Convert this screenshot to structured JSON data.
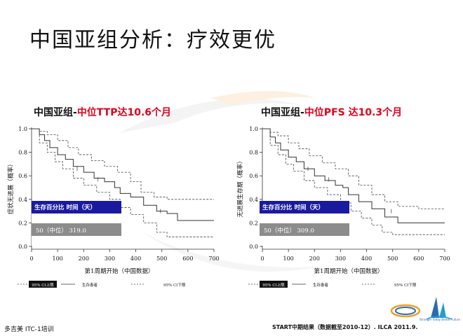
{
  "slide": {
    "title": "中国亚组分析：疗效更优",
    "footer_left": "多吉美 ITC-1培训",
    "footer_right": "START中期结果（数据截至2010-12）. ILCA 2011.9.",
    "logo_text": "Stronger Today Better Future"
  },
  "panels": [
    {
      "title_prefix": "中国亚组-",
      "title_highlight": "中位TTP达10.6个月"
    },
    {
      "title_prefix": "中国亚组-",
      "title_highlight": "中位PFS 达10.3个月"
    }
  ],
  "chart_data": [
    {
      "type": "line",
      "subtype": "kaplan-meier",
      "ylabel": "症状无进展（概率）",
      "xlabel": "第1周期开始（中国数据）",
      "xlim": [
        0,
        700
      ],
      "ylim": [
        0,
        1.0
      ],
      "xticks": [
        0,
        100,
        200,
        300,
        400,
        500,
        600,
        700
      ],
      "yticks": [
        "0.0",
        "0.2",
        "0.4",
        "0.6",
        "0.8",
        "1.0"
      ],
      "table": {
        "header": "生存百分比  时间（天）",
        "row": "50（中位）   319.0"
      },
      "legend": [
        "95% CI上限",
        "生存患者",
        "95% CI下限"
      ],
      "series": [
        {
          "name": "生存患者",
          "style": "solid",
          "x": [
            0,
            30,
            50,
            70,
            100,
            130,
            160,
            200,
            240,
            280,
            319,
            340,
            380,
            430,
            480,
            520,
            560,
            600,
            700
          ],
          "y": [
            1.0,
            0.95,
            0.9,
            0.84,
            0.78,
            0.74,
            0.68,
            0.63,
            0.58,
            0.55,
            0.5,
            0.45,
            0.42,
            0.35,
            0.3,
            0.28,
            0.22,
            0.22,
            0.22
          ]
        },
        {
          "name": "95% CI上限",
          "style": "dashed",
          "x": [
            0,
            30,
            60,
            100,
            140,
            180,
            230,
            280,
            330,
            380,
            420,
            470,
            520,
            600,
            700
          ],
          "y": [
            1.0,
            0.98,
            0.95,
            0.9,
            0.84,
            0.78,
            0.73,
            0.68,
            0.63,
            0.55,
            0.46,
            0.42,
            0.4,
            0.4,
            0.4
          ]
        },
        {
          "name": "95% CI下限",
          "style": "dashed",
          "x": [
            0,
            30,
            60,
            90,
            120,
            160,
            200,
            250,
            300,
            340,
            380,
            430,
            480,
            520,
            700
          ],
          "y": [
            1.0,
            0.88,
            0.8,
            0.72,
            0.66,
            0.58,
            0.52,
            0.46,
            0.4,
            0.33,
            0.27,
            0.2,
            0.12,
            0.08,
            0.08
          ]
        }
      ]
    },
    {
      "type": "line",
      "subtype": "kaplan-meier",
      "ylabel": "无进展生存期（概率）",
      "xlabel": "第1周期开始（中国数据）",
      "xlim": [
        0,
        700
      ],
      "ylim": [
        0,
        1.0
      ],
      "xticks": [
        0,
        100,
        200,
        300,
        400,
        500,
        600,
        700
      ],
      "yticks": [
        "0.0",
        "0.2",
        "0.4",
        "0.6",
        "0.8",
        "1.0"
      ],
      "table": {
        "header": "生存百分比  时间（天）",
        "row": "50（中位）   309.0"
      },
      "legend": [
        "95% CI上限",
        "生存患者",
        "95% CI下限"
      ],
      "series": [
        {
          "name": "生存患者",
          "style": "solid",
          "x": [
            0,
            30,
            50,
            70,
            100,
            130,
            160,
            200,
            240,
            280,
            309,
            330,
            370,
            420,
            470,
            520,
            560,
            600,
            700
          ],
          "y": [
            1.0,
            0.93,
            0.88,
            0.82,
            0.76,
            0.72,
            0.66,
            0.6,
            0.56,
            0.52,
            0.5,
            0.44,
            0.38,
            0.32,
            0.25,
            0.2,
            0.2,
            0.2,
            0.2
          ]
        },
        {
          "name": "95% CI上限",
          "style": "dashed",
          "x": [
            0,
            30,
            60,
            100,
            140,
            180,
            230,
            280,
            330,
            370,
            420,
            470,
            520,
            600,
            700
          ],
          "y": [
            1.0,
            0.97,
            0.94,
            0.88,
            0.83,
            0.77,
            0.71,
            0.66,
            0.6,
            0.52,
            0.44,
            0.38,
            0.34,
            0.32,
            0.32
          ]
        },
        {
          "name": "95% CI下限",
          "style": "dashed",
          "x": [
            0,
            30,
            60,
            90,
            120,
            160,
            200,
            250,
            300,
            340,
            380,
            420,
            460,
            500,
            700
          ],
          "y": [
            1.0,
            0.86,
            0.78,
            0.7,
            0.64,
            0.56,
            0.5,
            0.44,
            0.37,
            0.3,
            0.24,
            0.18,
            0.12,
            0.1,
            0.1
          ]
        }
      ]
    }
  ]
}
